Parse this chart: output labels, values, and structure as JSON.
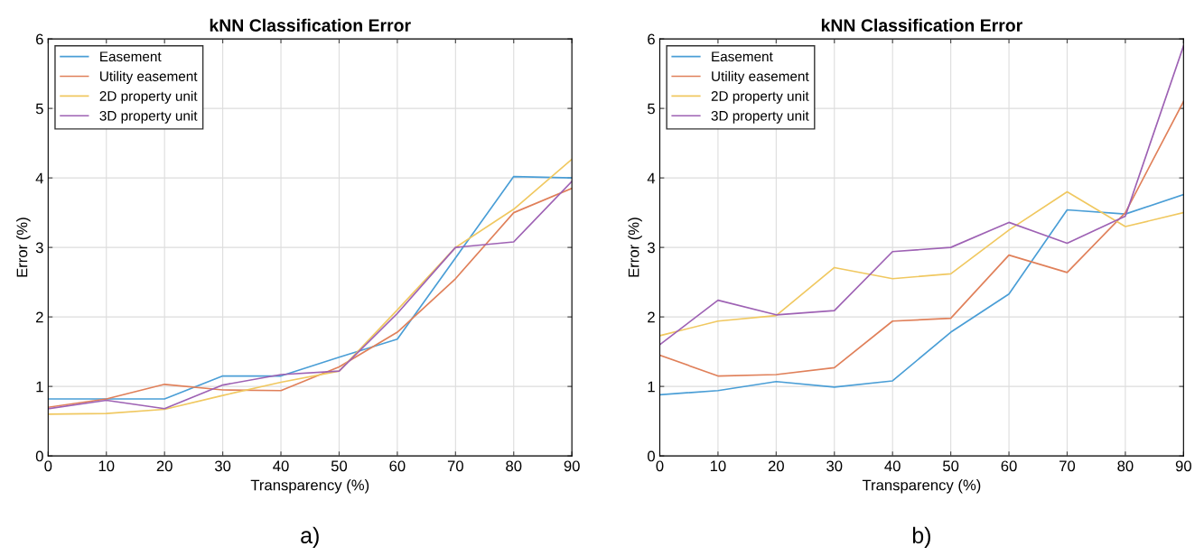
{
  "chart_data": [
    {
      "type": "line",
      "title": "kNN Classification Error",
      "xlabel": "Transparency (%)",
      "ylabel": "Error (%)",
      "x": [
        0,
        10,
        20,
        30,
        40,
        50,
        60,
        70,
        80,
        90
      ],
      "xlim": [
        0,
        90
      ],
      "xticks": [
        0,
        10,
        20,
        30,
        40,
        50,
        60,
        70,
        80,
        90
      ],
      "ylim": [
        0,
        6
      ],
      "yticks": [
        0,
        1,
        2,
        3,
        4,
        5,
        6
      ],
      "grid": true,
      "legend": "top left",
      "annotations": [
        "a)"
      ],
      "series": [
        {
          "name": "Easement",
          "color": "#4a9ed6",
          "values": [
            0.82,
            0.82,
            0.82,
            1.15,
            1.15,
            1.42,
            1.68,
            2.85,
            4.02,
            4.0
          ]
        },
        {
          "name": "Utility easement",
          "color": "#e0805a",
          "values": [
            0.7,
            0.82,
            1.03,
            0.95,
            0.94,
            1.28,
            1.78,
            2.55,
            3.5,
            3.85
          ]
        },
        {
          "name": "2D property unit",
          "color": "#f0c860",
          "values": [
            0.6,
            0.61,
            0.67,
            0.87,
            1.06,
            1.22,
            2.1,
            3.0,
            3.55,
            4.27
          ]
        },
        {
          "name": "3D property unit",
          "color": "#9e62b4",
          "values": [
            0.68,
            0.8,
            0.68,
            1.02,
            1.17,
            1.22,
            2.05,
            3.0,
            3.08,
            3.95
          ]
        }
      ]
    },
    {
      "type": "line",
      "title": "kNN Classification Error",
      "xlabel": "Transparency (%)",
      "ylabel": "Error (%)",
      "x": [
        0,
        10,
        20,
        30,
        40,
        50,
        60,
        70,
        80,
        90
      ],
      "xlim": [
        0,
        90
      ],
      "xticks": [
        0,
        10,
        20,
        30,
        40,
        50,
        60,
        70,
        80,
        90
      ],
      "ylim": [
        0,
        6
      ],
      "yticks": [
        0,
        1,
        2,
        3,
        4,
        5,
        6
      ],
      "grid": true,
      "legend": "top left",
      "annotations": [
        "b)"
      ],
      "series": [
        {
          "name": "Easement",
          "color": "#4a9ed6",
          "values": [
            0.88,
            0.94,
            1.07,
            0.99,
            1.08,
            1.78,
            2.33,
            3.54,
            3.48,
            3.76
          ]
        },
        {
          "name": "Utility easement",
          "color": "#e0805a",
          "values": [
            1.45,
            1.15,
            1.17,
            1.27,
            1.94,
            1.98,
            2.89,
            2.64,
            3.5,
            5.1
          ]
        },
        {
          "name": "2D property unit",
          "color": "#f0c860",
          "values": [
            1.73,
            1.94,
            2.02,
            2.71,
            2.55,
            2.62,
            3.25,
            3.8,
            3.3,
            3.5
          ]
        },
        {
          "name": "3D property unit",
          "color": "#9e62b4",
          "values": [
            1.6,
            2.24,
            2.03,
            2.09,
            2.94,
            3.0,
            3.36,
            3.06,
            3.45,
            5.9
          ]
        }
      ]
    }
  ]
}
